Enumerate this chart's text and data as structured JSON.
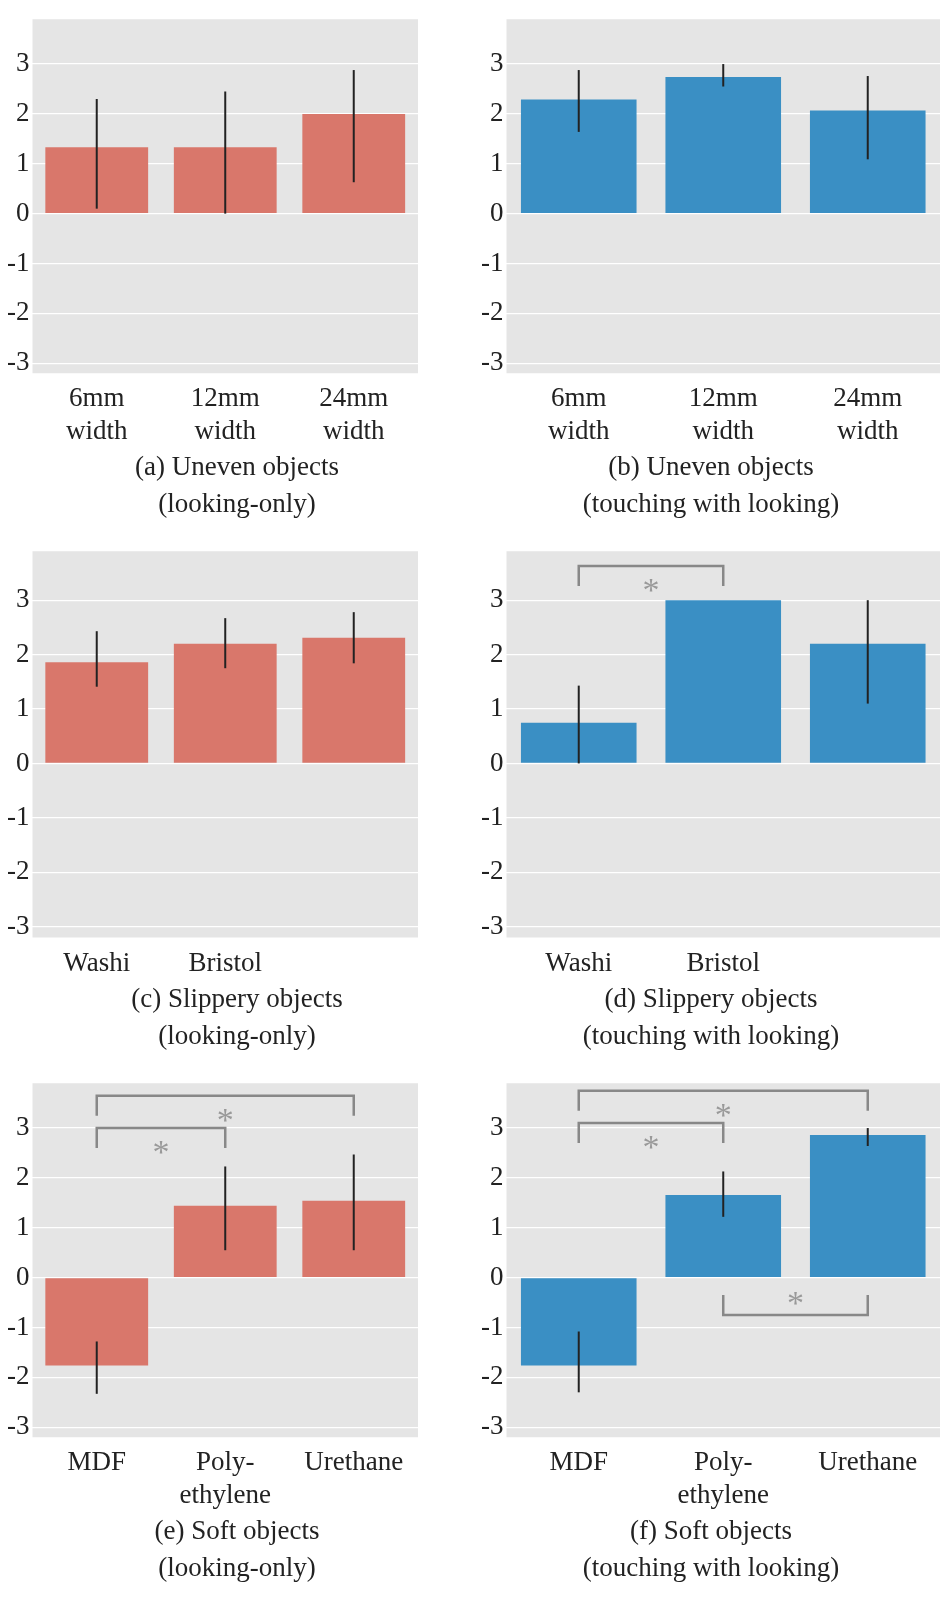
{
  "chart_data": [
    {
      "type": "bar",
      "title": "(a) Uneven objects\n(looking-only)",
      "categories": [
        "6mm width",
        "12mm width",
        "24mm width"
      ],
      "values": [
        1.33,
        1.33,
        2.0
      ],
      "errors": [
        [
          0.1,
          2.3
        ],
        [
          0,
          2.45
        ],
        [
          0.63,
          2.88
        ]
      ],
      "color": "#d9776b",
      "ylim": [
        -3.2,
        3.9
      ],
      "yticks": [
        -3,
        -2,
        -1,
        0,
        1,
        2,
        3
      ],
      "grid": "y",
      "legend": false
    },
    {
      "type": "bar",
      "title": "(b) Uneven objects\n(touching with looking)",
      "categories": [
        "6mm width",
        "12mm width",
        "24mm width"
      ],
      "values": [
        2.29,
        2.74,
        2.07
      ],
      "errors": [
        [
          1.64,
          2.88
        ],
        [
          2.55,
          3.0
        ],
        [
          1.09,
          2.76
        ]
      ],
      "color": "#3a8fc4",
      "ylim": [
        -3.2,
        3.9
      ],
      "yticks": [
        -3,
        -2,
        -1,
        0,
        1,
        2,
        3
      ],
      "grid": "y",
      "legend": false
    },
    {
      "type": "bar",
      "title": "(c) Slippery objects\n(looking-only)",
      "categories": [
        "Washi",
        "Bristol",
        null
      ],
      "values": [
        1.86,
        2.2,
        2.31
      ],
      "errors": [
        [
          1.41,
          2.43
        ],
        [
          1.75,
          2.67
        ],
        [
          1.84,
          2.78
        ]
      ],
      "color": "#d9776b",
      "ylim": [
        -3.2,
        3.9
      ],
      "yticks": [
        -3,
        -2,
        -1,
        0,
        1,
        2,
        3
      ],
      "grid": "y",
      "legend": false
    },
    {
      "type": "bar",
      "title": "(d) Slippery objects\n(touching with looking)",
      "categories": [
        "Washi",
        "Bristol",
        null
      ],
      "values": [
        0.75,
        3.0,
        2.2
      ],
      "errors": [
        [
          0,
          1.43
        ],
        null,
        [
          1.1,
          3.0
        ]
      ],
      "color": "#3a8fc4",
      "ylim": [
        -3.2,
        3.9
      ],
      "yticks": [
        -3,
        -2,
        -1,
        0,
        1,
        2,
        3
      ],
      "grid": "y",
      "legend": false,
      "annotations": [
        "*"
      ]
    },
    {
      "type": "bar",
      "title": "(e) Soft objects\n(looking-only)",
      "categories": [
        "MDF",
        "Poly-ethylene",
        "Urethane"
      ],
      "values": [
        -1.76,
        1.44,
        1.54
      ],
      "errors": [
        [
          -2.33,
          -1.28
        ],
        [
          0.55,
          2.23
        ],
        [
          0.55,
          2.47
        ]
      ],
      "color": "#d9776b",
      "ylim": [
        -3.2,
        3.9
      ],
      "yticks": [
        -3,
        -2,
        -1,
        0,
        1,
        2,
        3
      ],
      "grid": "y",
      "legend": false,
      "annotations": [
        "*",
        "*"
      ]
    },
    {
      "type": "bar",
      "title": "(f) Soft objects\n(touching with looking)",
      "categories": [
        "MDF",
        "Poly-ethylene",
        "Urethane"
      ],
      "values": [
        -1.76,
        1.66,
        2.86
      ],
      "errors": [
        [
          -2.3,
          -1.08
        ],
        [
          1.22,
          2.13
        ],
        [
          2.64,
          3.0
        ]
      ],
      "color": "#3a8fc4",
      "ylim": [
        -3.2,
        3.9
      ],
      "yticks": [
        -3,
        -2,
        -1,
        0,
        1,
        2,
        3
      ],
      "grid": "y",
      "legend": false,
      "annotations": [
        "*",
        "*",
        "*"
      ]
    }
  ]
}
